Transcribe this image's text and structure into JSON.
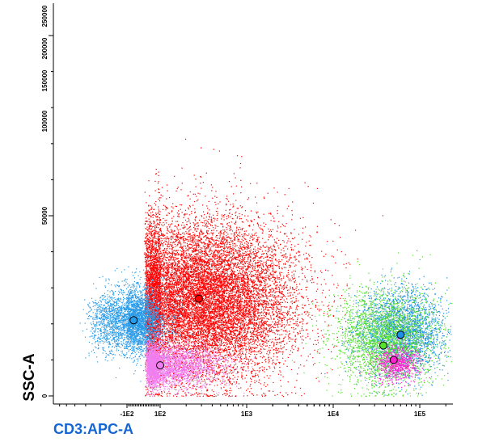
{
  "chart_data": {
    "type": "scatter",
    "xlabel": "CD3:APC-A",
    "ylabel": "SSC-A",
    "x_scale": "biexponential",
    "y_scale": "linear",
    "ylim": [
      0,
      262144
    ],
    "grid": false,
    "x_tick_labels": [
      "-1E2",
      "1E2",
      "1E3",
      "1E4",
      "1E5"
    ],
    "y_tick_labels": [
      "0",
      "50000",
      "100000",
      "150000",
      "200000",
      "250000"
    ],
    "series": [
      {
        "color": "#ff0000",
        "count": 14000,
        "center": [
          280,
          27000
        ],
        "spread_x_decades": 0.55,
        "spread_y": 11000,
        "centroid": [
          280,
          27000
        ]
      },
      {
        "color": "#2a9be8",
        "count": 3600,
        "center": [
          -60,
          21000
        ],
        "spread_x_decades": 0.35,
        "spread_y": 4500,
        "centroid": [
          -60,
          21000
        ]
      },
      {
        "color": "#f07ef0",
        "count": 3200,
        "center": [
          100,
          8500
        ],
        "spread_x_decades": 0.35,
        "spread_y": 3000,
        "centroid": [
          100,
          8500
        ]
      },
      {
        "color": "#1d8fe6",
        "count": 2600,
        "center": [
          60000,
          18000
        ],
        "spread_x_decades": 0.25,
        "spread_y": 6000,
        "centroid": [
          60000,
          17000
        ]
      },
      {
        "color": "#55e02a",
        "count": 2600,
        "center": [
          40000,
          16000
        ],
        "spread_x_decades": 0.3,
        "spread_y": 7000,
        "centroid": [
          38000,
          14000
        ]
      },
      {
        "color": "#ff20d0",
        "count": 700,
        "center": [
          55000,
          9000
        ],
        "spread_x_decades": 0.12,
        "spread_y": 2500,
        "centroid": [
          50000,
          10000
        ]
      }
    ]
  }
}
